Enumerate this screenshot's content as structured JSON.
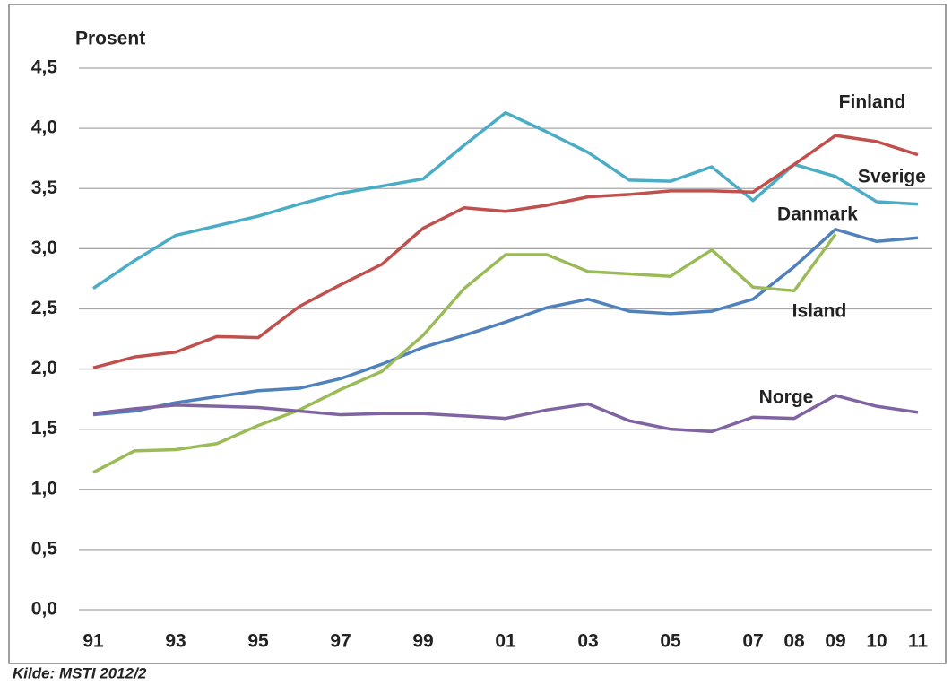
{
  "chart_data": {
    "type": "line",
    "y_label": "Prosent",
    "source": "Kilde: MSTI  2012/2",
    "categories": [
      "91",
      null,
      "93",
      null,
      "95",
      null,
      "97",
      null,
      "99",
      null,
      "01",
      null,
      "03",
      null,
      "05",
      null,
      "07",
      "08",
      "09",
      "10",
      "11"
    ],
    "series": [
      {
        "name": "Sverige",
        "color": "#4bacc6",
        "values": [
          2.67,
          2.9,
          3.11,
          3.19,
          3.27,
          3.37,
          3.46,
          3.52,
          3.58,
          3.86,
          4.13,
          3.97,
          3.8,
          3.57,
          3.56,
          3.68,
          3.4,
          3.7,
          3.6,
          3.39,
          3.37
        ]
      },
      {
        "name": "Finland",
        "color": "#c0504d",
        "values": [
          2.01,
          2.1,
          2.14,
          2.27,
          2.26,
          2.52,
          2.7,
          2.87,
          3.17,
          3.34,
          3.31,
          3.36,
          3.43,
          3.45,
          3.48,
          3.48,
          3.47,
          3.7,
          3.94,
          3.89,
          3.78
        ]
      },
      {
        "name": "Danmark",
        "color": "#4f81bd",
        "values": [
          1.62,
          1.65,
          1.72,
          1.77,
          1.82,
          1.84,
          1.92,
          2.04,
          2.18,
          2.28,
          2.39,
          2.51,
          2.58,
          2.48,
          2.46,
          2.48,
          2.58,
          2.85,
          3.16,
          3.06,
          3.09
        ]
      },
      {
        "name": "Island",
        "color": "#9bbb59",
        "values": [
          1.14,
          1.32,
          1.33,
          1.38,
          1.53,
          1.66,
          1.83,
          1.98,
          2.28,
          2.67,
          2.95,
          2.95,
          2.81,
          2.79,
          2.77,
          2.99,
          2.68,
          2.65,
          3.12,
          null,
          null
        ]
      },
      {
        "name": "Norge",
        "color": "#8064a2",
        "values": [
          1.63,
          1.67,
          1.7,
          1.69,
          1.68,
          1.65,
          1.62,
          1.63,
          1.63,
          1.61,
          1.59,
          1.66,
          1.71,
          1.57,
          1.5,
          1.48,
          1.6,
          1.59,
          1.78,
          1.69,
          1.64
        ]
      }
    ],
    "ylim": [
      0,
      4.5
    ],
    "yticks": [
      {
        "value": 0,
        "label": "0,0"
      },
      {
        "value": 0.5,
        "label": "0,5"
      },
      {
        "value": 1,
        "label": "1,0"
      },
      {
        "value": 1.5,
        "label": "1,5"
      },
      {
        "value": 2,
        "label": "2,0"
      },
      {
        "value": 2.5,
        "label": "2,5"
      },
      {
        "value": 3,
        "label": "3,0"
      },
      {
        "value": 3.5,
        "label": "3,5"
      },
      {
        "value": 4,
        "label": "4,0"
      },
      {
        "value": 4.5,
        "label": "4,5"
      }
    ],
    "grid": true
  }
}
